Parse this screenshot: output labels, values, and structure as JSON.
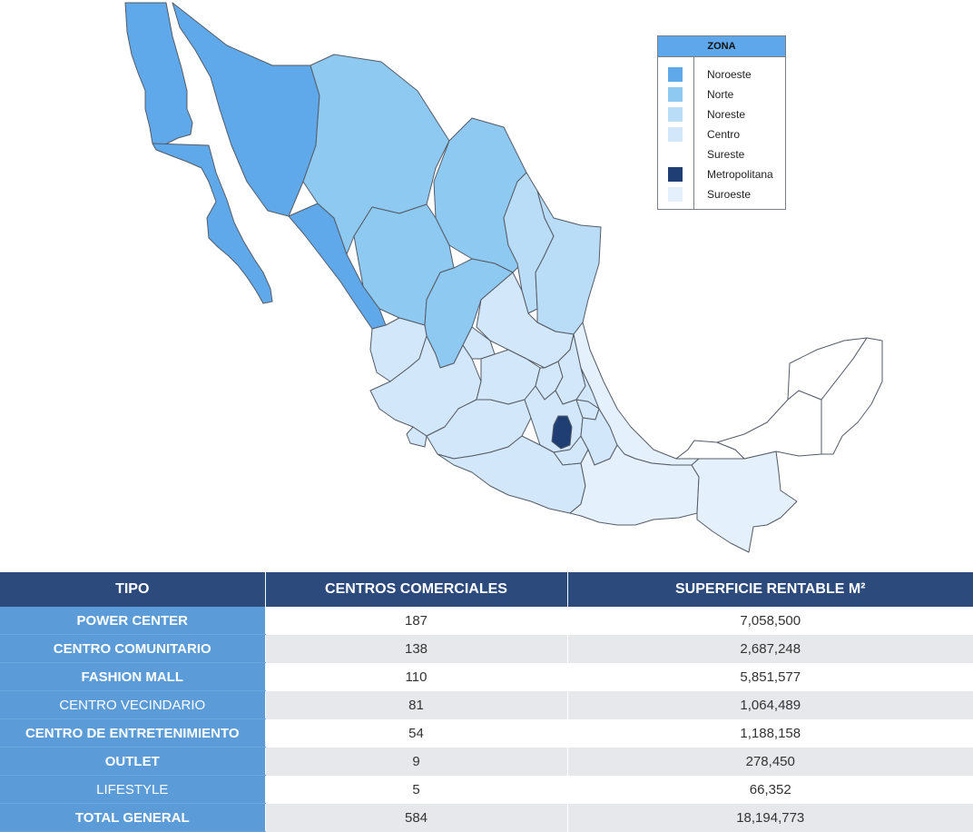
{
  "legend": {
    "title": "ZONA",
    "items": [
      {
        "label": "Noroeste",
        "color": "#5fa8ea"
      },
      {
        "label": "Norte",
        "color": "#8ec9f2"
      },
      {
        "label": "Noreste",
        "color": "#b9dcf7"
      },
      {
        "label": "Centro",
        "color": "#d2e7f9"
      },
      {
        "label": "Sureste",
        "color": "#ffffff"
      },
      {
        "label": "Metropolitana",
        "color": "#1f3f74"
      },
      {
        "label": "Suroeste",
        "color": "#e4f0fb"
      }
    ]
  },
  "map": {
    "zone_colors": {
      "noroeste": "#5fa8ea",
      "norte": "#8ec9f2",
      "noreste": "#b9dcf7",
      "centro": "#d2e7f9",
      "sureste": "#ffffff",
      "metropolitana": "#1f3f74",
      "suroeste": "#e4f0fb"
    }
  },
  "table": {
    "headers": [
      "TIPO",
      "CENTROS COMERCIALES",
      "SUPERFICIE RENTABLE M²"
    ],
    "rows": [
      {
        "tipo": "POWER CENTER",
        "centros": "187",
        "superficie": "7,058,500",
        "bold": true
      },
      {
        "tipo": "CENTRO COMUNITARIO",
        "centros": "138",
        "superficie": "2,687,248",
        "bold": true
      },
      {
        "tipo": "FASHION MALL",
        "centros": "110",
        "superficie": "5,851,577",
        "bold": true
      },
      {
        "tipo": "CENTRO VECINDARIO",
        "centros": "81",
        "superficie": "1,064,489",
        "bold": false
      },
      {
        "tipo": "CENTRO DE ENTRETENIMIENTO",
        "centros": "54",
        "superficie": "1,188,158",
        "bold": true
      },
      {
        "tipo": "OUTLET",
        "centros": "9",
        "superficie": "278,450",
        "bold": true
      },
      {
        "tipo": "LIFESTYLE",
        "centros": "5",
        "superficie": "66,352",
        "bold": false
      },
      {
        "tipo": "TOTAL GENERAL",
        "centros": "584",
        "superficie": "18,194,773",
        "bold": true
      }
    ]
  }
}
